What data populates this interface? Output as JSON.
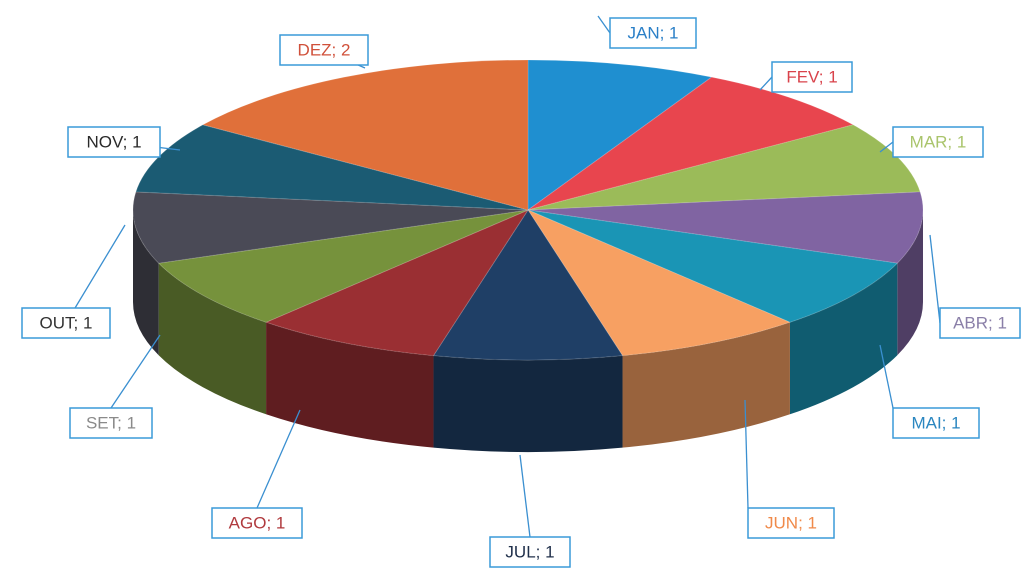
{
  "chart_data": {
    "type": "pie3d",
    "categories": [
      "JAN",
      "FEV",
      "MAR",
      "ABR",
      "MAI",
      "JUN",
      "JUL",
      "AGO",
      "SET",
      "OUT",
      "NOV",
      "DEZ"
    ],
    "values": [
      1,
      1,
      1,
      1,
      1,
      1,
      1,
      1,
      1,
      1,
      1,
      2
    ],
    "value_labels": [
      "JAN; 1",
      "FEV; 1",
      "MAR; 1",
      "ABR; 1",
      "MAI; 1",
      "JUN; 1",
      "JUL; 1",
      "AGO; 1",
      "SET; 1",
      "OUT; 1",
      "NOV; 1",
      "DEZ; 2"
    ],
    "colors": [
      "#1f8fd0",
      "#e8454e",
      "#9bbb59",
      "#8064a2",
      "#1a95b5",
      "#f7a062",
      "#1f3f66",
      "#9a2f33",
      "#76923c",
      "#4a4a56",
      "#1b5b73",
      "#e0703a"
    ],
    "label_colors": [
      "#2a7fc7",
      "#d9434b",
      "#a9c46b",
      "#8a7fa8",
      "#2a86c0",
      "#f08a4a",
      "#1f2f4a",
      "#b03a3e",
      "#8a8a8a",
      "#333333",
      "#2a2a2a",
      "#d0503a"
    ]
  }
}
